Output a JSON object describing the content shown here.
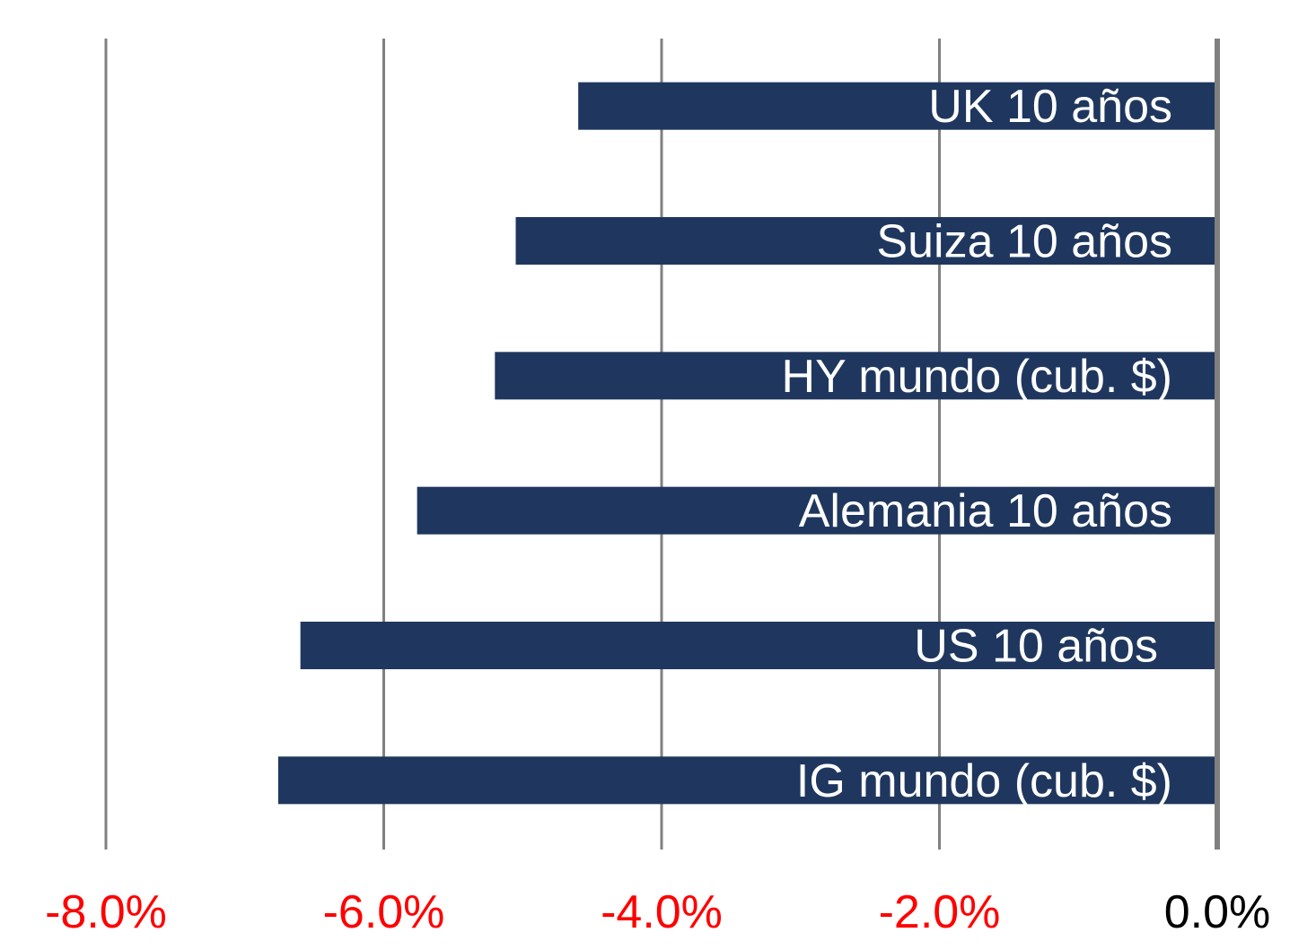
{
  "chart_data": {
    "type": "bar",
    "orientation": "horizontal",
    "categories": [
      "UK 10 años",
      "Suiza 10 años",
      "HY mundo (cub. $)",
      "Alemania 10 años",
      "US 10 años",
      "IG mundo (cub. $)"
    ],
    "values": [
      -4.6,
      -5.05,
      -5.2,
      -5.76,
      -6.6,
      -6.76
    ],
    "xlim": [
      -8.0,
      0.0
    ],
    "xticks": [
      -8.0,
      -6.0,
      -4.0,
      -2.0,
      0.0
    ],
    "tick_labels": [
      "-8.0%",
      "-6.0%",
      "-4.0%",
      "-2.0%",
      "0.0%"
    ],
    "grid": true,
    "title": "",
    "xlabel": "",
    "ylabel": "",
    "colors": {
      "bar": "#1f375e",
      "bar_label": "#ffffff",
      "grid": "#808080",
      "zero_axis": "#808080",
      "negative_tick": "#ff0000",
      "zero_tick": "#000000"
    }
  }
}
